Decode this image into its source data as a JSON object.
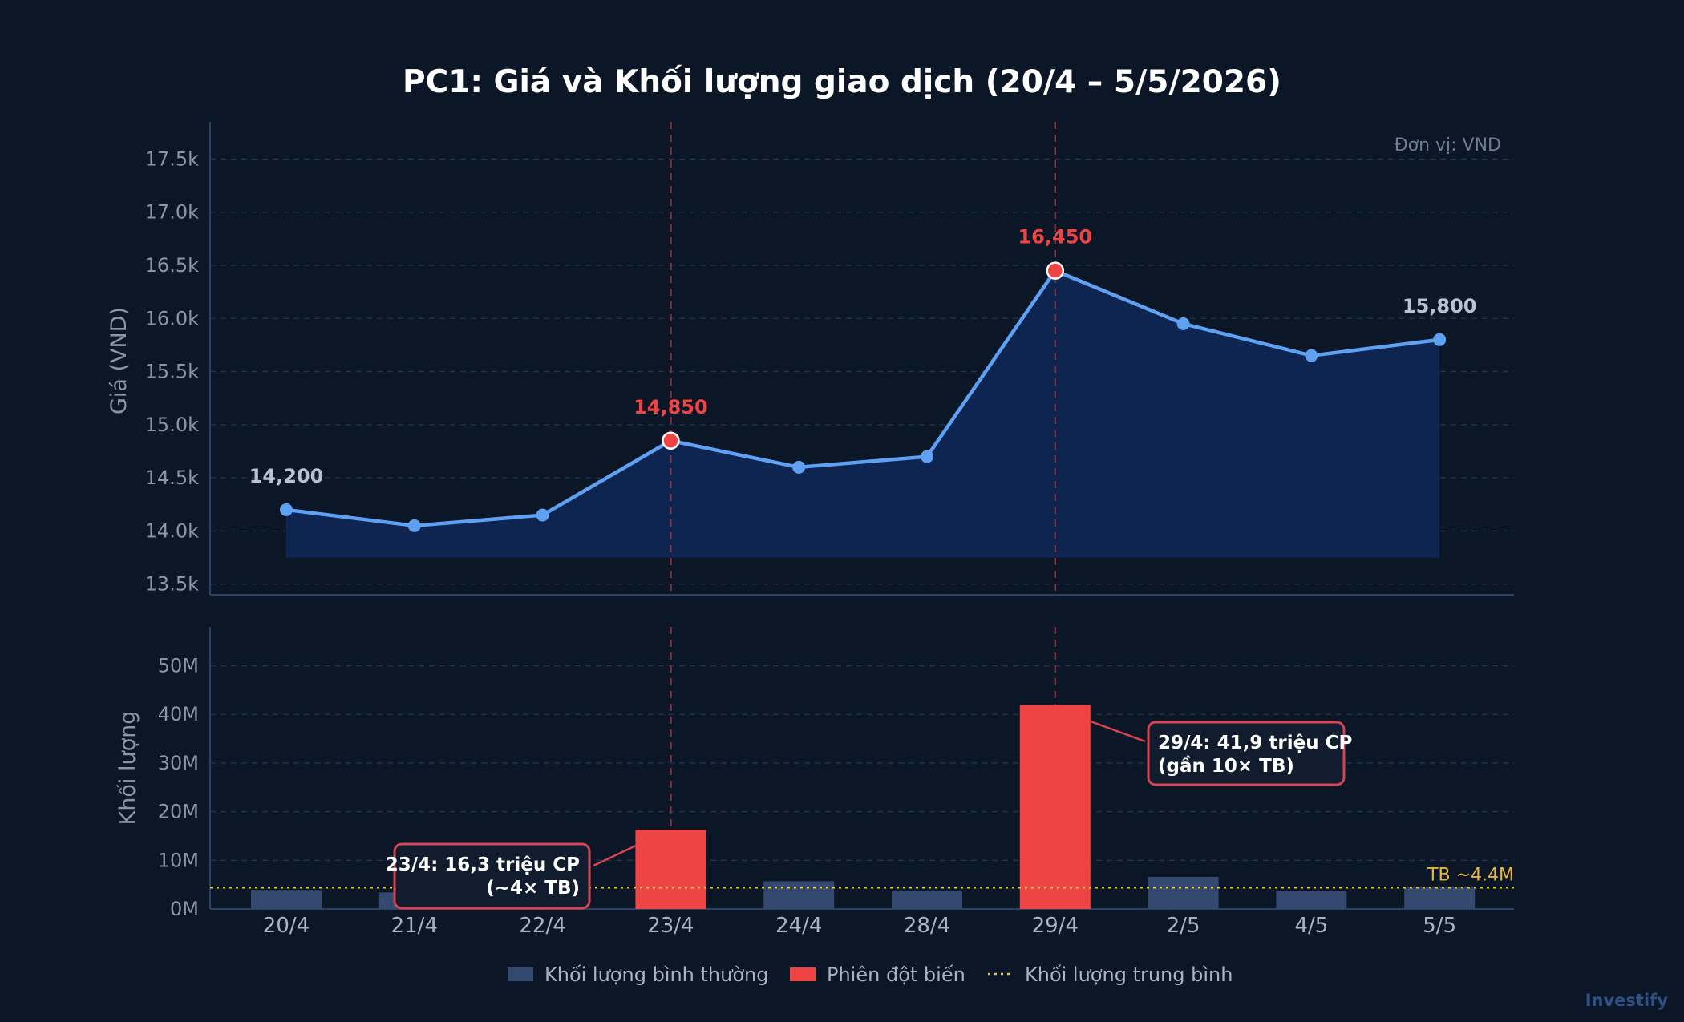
{
  "chart_title": "PC1: Giá và Khối lượng giao dịch (20/4 – 5/5/2026)",
  "unit_note": "Đơn vị: VND",
  "watermark": "Investify",
  "colors": {
    "background": "#0b1627",
    "price_line": "#5ea1f2",
    "price_area": "#0f2553",
    "spike": "#ef4444",
    "normal_bar": "#34496f",
    "average_line": "#e8c547"
  },
  "chart_data": [
    {
      "type": "area",
      "ylabel": "Giá (VND)",
      "ylim": [
        13400,
        17850
      ],
      "yticks": [
        13500,
        14000,
        14500,
        15000,
        15500,
        16000,
        16500,
        17000,
        17500
      ],
      "ytick_labels": [
        "13.5k",
        "14.0k",
        "14.5k",
        "15.0k",
        "15.5k",
        "16.0k",
        "16.5k",
        "17.0k",
        "17.5k"
      ],
      "grid": true,
      "categories": [
        "20/4",
        "21/4",
        "22/4",
        "23/4",
        "24/4",
        "28/4",
        "29/4",
        "2/5",
        "4/5",
        "5/5"
      ],
      "values": [
        14200,
        14050,
        14150,
        14850,
        14600,
        14700,
        16450,
        15950,
        15650,
        15800
      ],
      "spike_indices": [
        3,
        6
      ],
      "data_labels": [
        {
          "index": 0,
          "text": "14,200",
          "style": "normal"
        },
        {
          "index": 3,
          "text": "14,850",
          "style": "spike"
        },
        {
          "index": 6,
          "text": "16,450",
          "style": "spike"
        },
        {
          "index": 9,
          "text": "15,800",
          "style": "normal"
        }
      ]
    },
    {
      "type": "bar",
      "ylabel": "Khối lượng",
      "ylim": [
        0,
        58
      ],
      "yticks": [
        0,
        10,
        20,
        30,
        40,
        50
      ],
      "ytick_labels": [
        "0M",
        "10M",
        "20M",
        "30M",
        "40M",
        "50M"
      ],
      "grid": true,
      "categories": [
        "20/4",
        "21/4",
        "22/4",
        "23/4",
        "24/4",
        "28/4",
        "29/4",
        "2/5",
        "4/5",
        "5/5"
      ],
      "values": [
        3.9,
        3.4,
        3.1,
        16.3,
        5.7,
        3.8,
        41.9,
        6.6,
        3.7,
        4.4
      ],
      "spike_indices": [
        3,
        6
      ],
      "average": 4.4,
      "average_label": "TB ~4.4M",
      "annotations": [
        {
          "index": 3,
          "lines": [
            "23/4: 16,3 triệu CP",
            "(~4× TB)"
          ]
        },
        {
          "index": 6,
          "lines": [
            "29/4: 41,9 triệu CP",
            "(gần 10× TB)"
          ]
        }
      ]
    }
  ],
  "legend": [
    {
      "label": "Khối lượng bình thường",
      "kind": "normal-bar"
    },
    {
      "label": "Phiên đột biến",
      "kind": "spike-bar"
    },
    {
      "label": "Khối lượng trung bình",
      "kind": "average-line"
    }
  ]
}
